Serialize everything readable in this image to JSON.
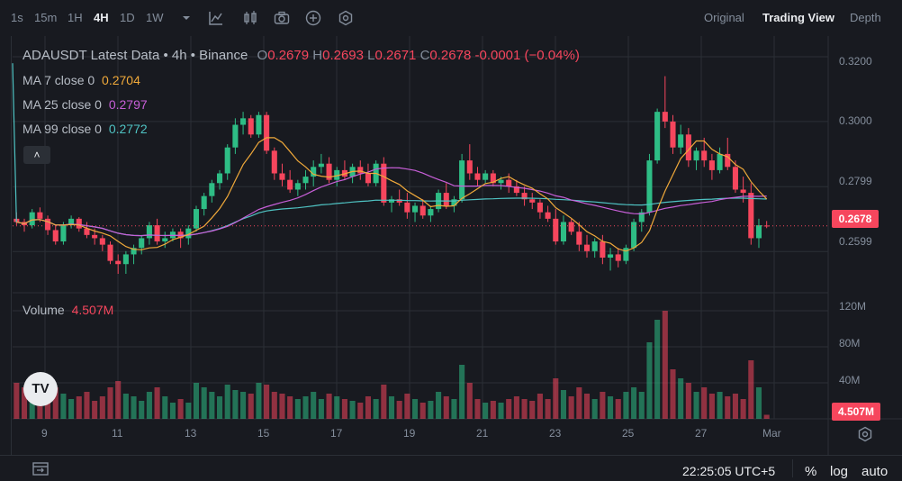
{
  "toolbar": {
    "timeframes": [
      "1s",
      "15m",
      "1H",
      "4H",
      "1D",
      "1W"
    ],
    "active_timeframe": "4H",
    "icons": [
      "chevron-down-icon",
      "indicator-icon",
      "candle-type-icon",
      "camera-icon",
      "add-icon",
      "settings-icon"
    ],
    "views": [
      "Original",
      "Trading View",
      "Depth"
    ],
    "active_view": "Trading View"
  },
  "legend": {
    "symbol_line": "ADAUSDT Latest Data • 4h • Binance",
    "open_key": "O",
    "open": "0.2679",
    "high_key": "H",
    "high": "0.2693",
    "low_key": "L",
    "low": "0.2671",
    "close_key": "C",
    "close": "0.2678",
    "change": "-0.0001 (−0.04%)",
    "ma7_label": "MA 7 close 0",
    "ma7_value": "0.2704",
    "ma25_label": "MA 25 close 0",
    "ma25_value": "0.2797",
    "ma99_label": "MA 99 close 0",
    "ma99_value": "0.2772",
    "volume_label": "Volume",
    "volume_value": "4.507M",
    "collapse_glyph": "˄"
  },
  "price_axis": {
    "ticks": [
      "0.3200",
      "0.3000",
      "0.2799",
      "0.2599"
    ],
    "last_price": "0.2678"
  },
  "volume_axis": {
    "ticks": [
      "120M",
      "80M",
      "40M"
    ],
    "last_volume": "4.507M"
  },
  "time_axis": {
    "ticks": [
      "9",
      "11",
      "13",
      "15",
      "17",
      "19",
      "21",
      "23",
      "25",
      "27",
      "Mar"
    ]
  },
  "bottom": {
    "clock": "22:25:05 UTC+5",
    "percent": "%",
    "log": "log",
    "auto": "auto"
  },
  "logo_text": "TV",
  "colors": {
    "up": "#2ebd85",
    "down": "#f6465d",
    "ma7": "#f0a93a",
    "ma25": "#c85fd8",
    "ma99": "#4fc3c3",
    "background": "#181a20",
    "grid": "#2b2f36"
  },
  "chart_data": {
    "type": "candlestick",
    "y_range": [
      0.248,
      0.325
    ],
    "volume_range_millions": [
      0,
      125
    ],
    "candles": [
      [
        0.27,
        0.272,
        0.268,
        0.269,
        40
      ],
      [
        0.269,
        0.27,
        0.266,
        0.268,
        35
      ],
      [
        0.268,
        0.273,
        0.267,
        0.272,
        38
      ],
      [
        0.272,
        0.2735,
        0.269,
        0.27,
        30
      ],
      [
        0.27,
        0.271,
        0.265,
        0.2665,
        42
      ],
      [
        0.2665,
        0.268,
        0.262,
        0.263,
        35
      ],
      [
        0.263,
        0.269,
        0.262,
        0.268,
        28
      ],
      [
        0.268,
        0.271,
        0.267,
        0.27,
        22
      ],
      [
        0.27,
        0.2705,
        0.266,
        0.267,
        25
      ],
      [
        0.267,
        0.269,
        0.264,
        0.265,
        30
      ],
      [
        0.265,
        0.267,
        0.262,
        0.264,
        20
      ],
      [
        0.264,
        0.265,
        0.26,
        0.262,
        25
      ],
      [
        0.262,
        0.263,
        0.256,
        0.257,
        35
      ],
      [
        0.257,
        0.259,
        0.253,
        0.256,
        42
      ],
      [
        0.256,
        0.26,
        0.253,
        0.259,
        28
      ],
      [
        0.259,
        0.262,
        0.256,
        0.261,
        25
      ],
      [
        0.261,
        0.265,
        0.259,
        0.264,
        20
      ],
      [
        0.264,
        0.269,
        0.262,
        0.268,
        30
      ],
      [
        0.268,
        0.27,
        0.262,
        0.263,
        35
      ],
      [
        0.263,
        0.266,
        0.261,
        0.264,
        25
      ],
      [
        0.264,
        0.267,
        0.263,
        0.266,
        18
      ],
      [
        0.266,
        0.267,
        0.261,
        0.264,
        22
      ],
      [
        0.264,
        0.268,
        0.262,
        0.267,
        18
      ],
      [
        0.267,
        0.274,
        0.266,
        0.273,
        40
      ],
      [
        0.273,
        0.278,
        0.271,
        0.277,
        35
      ],
      [
        0.277,
        0.282,
        0.275,
        0.281,
        30
      ],
      [
        0.281,
        0.285,
        0.279,
        0.284,
        25
      ],
      [
        0.284,
        0.293,
        0.282,
        0.292,
        38
      ],
      [
        0.292,
        0.301,
        0.29,
        0.299,
        32
      ],
      [
        0.299,
        0.303,
        0.296,
        0.301,
        30
      ],
      [
        0.301,
        0.302,
        0.295,
        0.296,
        28
      ],
      [
        0.296,
        0.303,
        0.295,
        0.302,
        40
      ],
      [
        0.302,
        0.303,
        0.29,
        0.291,
        38
      ],
      [
        0.291,
        0.292,
        0.282,
        0.284,
        30
      ],
      [
        0.284,
        0.287,
        0.28,
        0.282,
        28
      ],
      [
        0.282,
        0.285,
        0.278,
        0.279,
        25
      ],
      [
        0.279,
        0.282,
        0.277,
        0.281,
        22
      ],
      [
        0.281,
        0.285,
        0.279,
        0.283,
        25
      ],
      [
        0.283,
        0.288,
        0.28,
        0.286,
        30
      ],
      [
        0.286,
        0.29,
        0.284,
        0.287,
        22
      ],
      [
        0.287,
        0.289,
        0.281,
        0.282,
        28
      ],
      [
        0.282,
        0.286,
        0.28,
        0.285,
        25
      ],
      [
        0.285,
        0.288,
        0.282,
        0.283,
        22
      ],
      [
        0.283,
        0.287,
        0.281,
        0.286,
        20
      ],
      [
        0.286,
        0.288,
        0.282,
        0.284,
        18
      ],
      [
        0.284,
        0.287,
        0.28,
        0.281,
        25
      ],
      [
        0.281,
        0.288,
        0.28,
        0.287,
        22
      ],
      [
        0.287,
        0.289,
        0.274,
        0.275,
        38
      ],
      [
        0.275,
        0.277,
        0.272,
        0.276,
        25
      ],
      [
        0.276,
        0.279,
        0.274,
        0.275,
        20
      ],
      [
        0.275,
        0.278,
        0.27,
        0.272,
        28
      ],
      [
        0.272,
        0.275,
        0.269,
        0.274,
        22
      ],
      [
        0.274,
        0.276,
        0.27,
        0.271,
        18
      ],
      [
        0.271,
        0.274,
        0.269,
        0.273,
        20
      ],
      [
        0.273,
        0.279,
        0.272,
        0.278,
        30
      ],
      [
        0.278,
        0.281,
        0.273,
        0.274,
        25
      ],
      [
        0.274,
        0.277,
        0.272,
        0.276,
        22
      ],
      [
        0.276,
        0.29,
        0.275,
        0.288,
        60
      ],
      [
        0.288,
        0.293,
        0.282,
        0.284,
        40
      ],
      [
        0.284,
        0.286,
        0.28,
        0.282,
        22
      ],
      [
        0.282,
        0.285,
        0.281,
        0.284,
        18
      ],
      [
        0.284,
        0.285,
        0.28,
        0.281,
        20
      ],
      [
        0.281,
        0.283,
        0.279,
        0.282,
        18
      ],
      [
        0.282,
        0.284,
        0.278,
        0.28,
        22
      ],
      [
        0.28,
        0.282,
        0.277,
        0.278,
        25
      ],
      [
        0.278,
        0.28,
        0.274,
        0.276,
        22
      ],
      [
        0.276,
        0.278,
        0.273,
        0.275,
        20
      ],
      [
        0.275,
        0.276,
        0.27,
        0.272,
        28
      ],
      [
        0.272,
        0.274,
        0.269,
        0.27,
        22
      ],
      [
        0.27,
        0.273,
        0.262,
        0.263,
        45
      ],
      [
        0.263,
        0.271,
        0.262,
        0.269,
        32
      ],
      [
        0.269,
        0.27,
        0.265,
        0.266,
        25
      ],
      [
        0.266,
        0.269,
        0.26,
        0.262,
        35
      ],
      [
        0.262,
        0.265,
        0.258,
        0.26,
        28
      ],
      [
        0.26,
        0.264,
        0.258,
        0.263,
        22
      ],
      [
        0.263,
        0.265,
        0.256,
        0.258,
        30
      ],
      [
        0.258,
        0.261,
        0.254,
        0.259,
        25
      ],
      [
        0.259,
        0.261,
        0.255,
        0.257,
        22
      ],
      [
        0.257,
        0.262,
        0.256,
        0.261,
        30
      ],
      [
        0.261,
        0.27,
        0.26,
        0.269,
        35
      ],
      [
        0.269,
        0.273,
        0.266,
        0.272,
        30
      ],
      [
        0.272,
        0.29,
        0.271,
        0.288,
        85
      ],
      [
        0.288,
        0.304,
        0.287,
        0.303,
        110
      ],
      [
        0.303,
        0.314,
        0.298,
        0.3,
        120
      ],
      [
        0.3,
        0.302,
        0.29,
        0.292,
        55
      ],
      [
        0.292,
        0.299,
        0.29,
        0.296,
        45
      ],
      [
        0.296,
        0.298,
        0.286,
        0.288,
        40
      ],
      [
        0.288,
        0.292,
        0.285,
        0.291,
        30
      ],
      [
        0.291,
        0.295,
        0.286,
        0.288,
        35
      ],
      [
        0.288,
        0.29,
        0.282,
        0.285,
        28
      ],
      [
        0.285,
        0.292,
        0.284,
        0.29,
        30
      ],
      [
        0.29,
        0.295,
        0.285,
        0.286,
        25
      ],
      [
        0.286,
        0.288,
        0.278,
        0.279,
        28
      ],
      [
        0.279,
        0.283,
        0.275,
        0.278,
        22
      ],
      [
        0.278,
        0.281,
        0.262,
        0.264,
        65
      ],
      [
        0.264,
        0.27,
        0.261,
        0.268,
        35
      ],
      [
        0.2679,
        0.2693,
        0.2671,
        0.2678,
        4.507
      ]
    ]
  }
}
